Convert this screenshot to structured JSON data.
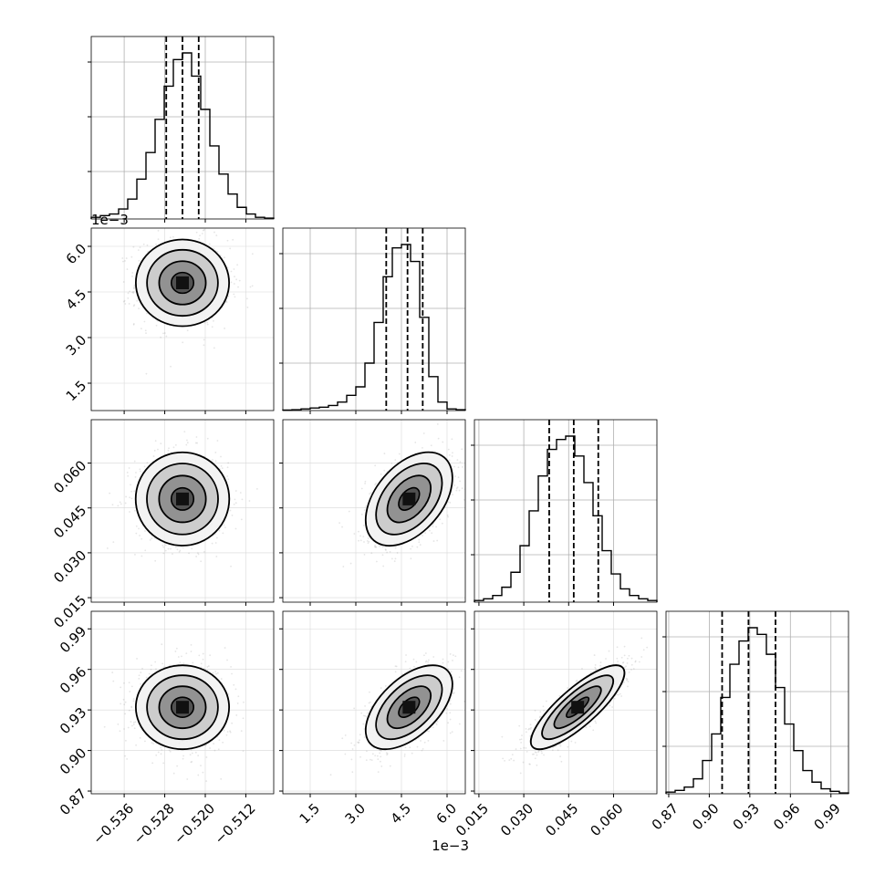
{
  "chart_data": {
    "type": "corner",
    "title": "",
    "grid": true,
    "parameters": [
      {
        "range": [
          -0.5425,
          -0.5065
        ],
        "ticks": [
          "−0.536",
          "−0.528",
          "−0.520",
          "−0.512"
        ],
        "tick_values": [
          -0.536,
          -0.528,
          -0.52,
          -0.512
        ],
        "offset_label": "",
        "quantiles": [
          -0.5277,
          -0.5245,
          -0.5213
        ],
        "hist": [
          1,
          2,
          3,
          6,
          12,
          24,
          40,
          60,
          80,
          96,
          100,
          86,
          66,
          44,
          27,
          15,
          7,
          3,
          1,
          0.5
        ]
      },
      {
        "range": [
          0.6,
          6.6
        ],
        "ticks": [
          "1.5",
          "3.0",
          "4.5",
          "6.0"
        ],
        "tick_values": [
          1.5,
          3.0,
          4.5,
          6.0
        ],
        "offset_label": "1e−3",
        "quantiles": [
          4.0,
          4.7,
          5.2
        ],
        "hist": [
          0.3,
          0.5,
          1,
          1.5,
          2,
          3,
          5,
          9,
          14,
          28,
          52,
          79,
          96,
          98,
          88,
          55,
          20,
          5,
          1,
          0.5
        ]
      },
      {
        "range": [
          0.0135,
          0.0745
        ],
        "ticks": [
          "0.015",
          "0.030",
          "0.045",
          "0.060"
        ],
        "tick_values": [
          0.015,
          0.03,
          0.045,
          0.06
        ],
        "offset_label": "",
        "quantiles": [
          0.0385,
          0.0467,
          0.0549
        ],
        "hist": [
          1,
          2,
          4,
          9,
          18,
          34,
          55,
          76,
          92,
          98,
          100,
          88,
          72,
          52,
          31,
          17,
          8,
          4,
          2,
          1
        ]
      },
      {
        "range": [
          0.868,
          1.003
        ],
        "ticks": [
          "0.87",
          "0.90",
          "0.93",
          "0.96",
          "0.99"
        ],
        "tick_values": [
          0.87,
          0.9,
          0.93,
          0.96,
          0.99
        ],
        "offset_label": "",
        "quantiles": [
          0.9095,
          0.929,
          0.949
        ],
        "hist": [
          1,
          2,
          4,
          9,
          20,
          36,
          58,
          78,
          92,
          100,
          96,
          84,
          64,
          42,
          26,
          14,
          7,
          3,
          1.5,
          0.5
        ]
      }
    ],
    "pairs": [
      {
        "i": 1,
        "j": 0,
        "center": [
          -0.5245,
          4.8
        ],
        "sd": [
          0.004,
          0.62
        ],
        "corr": 0.0
      },
      {
        "i": 2,
        "j": 0,
        "center": [
          -0.5245,
          0.048
        ],
        "sd": [
          0.004,
          0.0068
        ],
        "corr": 0.0
      },
      {
        "i": 2,
        "j": 1,
        "center": [
          4.75,
          0.048
        ],
        "sd": [
          0.62,
          0.0068
        ],
        "corr": 0.45
      },
      {
        "i": 3,
        "j": 0,
        "center": [
          -0.5245,
          0.932
        ],
        "sd": [
          0.004,
          0.0135
        ],
        "corr": 0.0
      },
      {
        "i": 3,
        "j": 1,
        "center": [
          4.75,
          0.932
        ],
        "sd": [
          0.62,
          0.0135
        ],
        "corr": 0.55
      },
      {
        "i": 3,
        "j": 2,
        "center": [
          0.048,
          0.932
        ],
        "sd": [
          0.0068,
          0.0135
        ],
        "corr": 0.82
      }
    ]
  }
}
